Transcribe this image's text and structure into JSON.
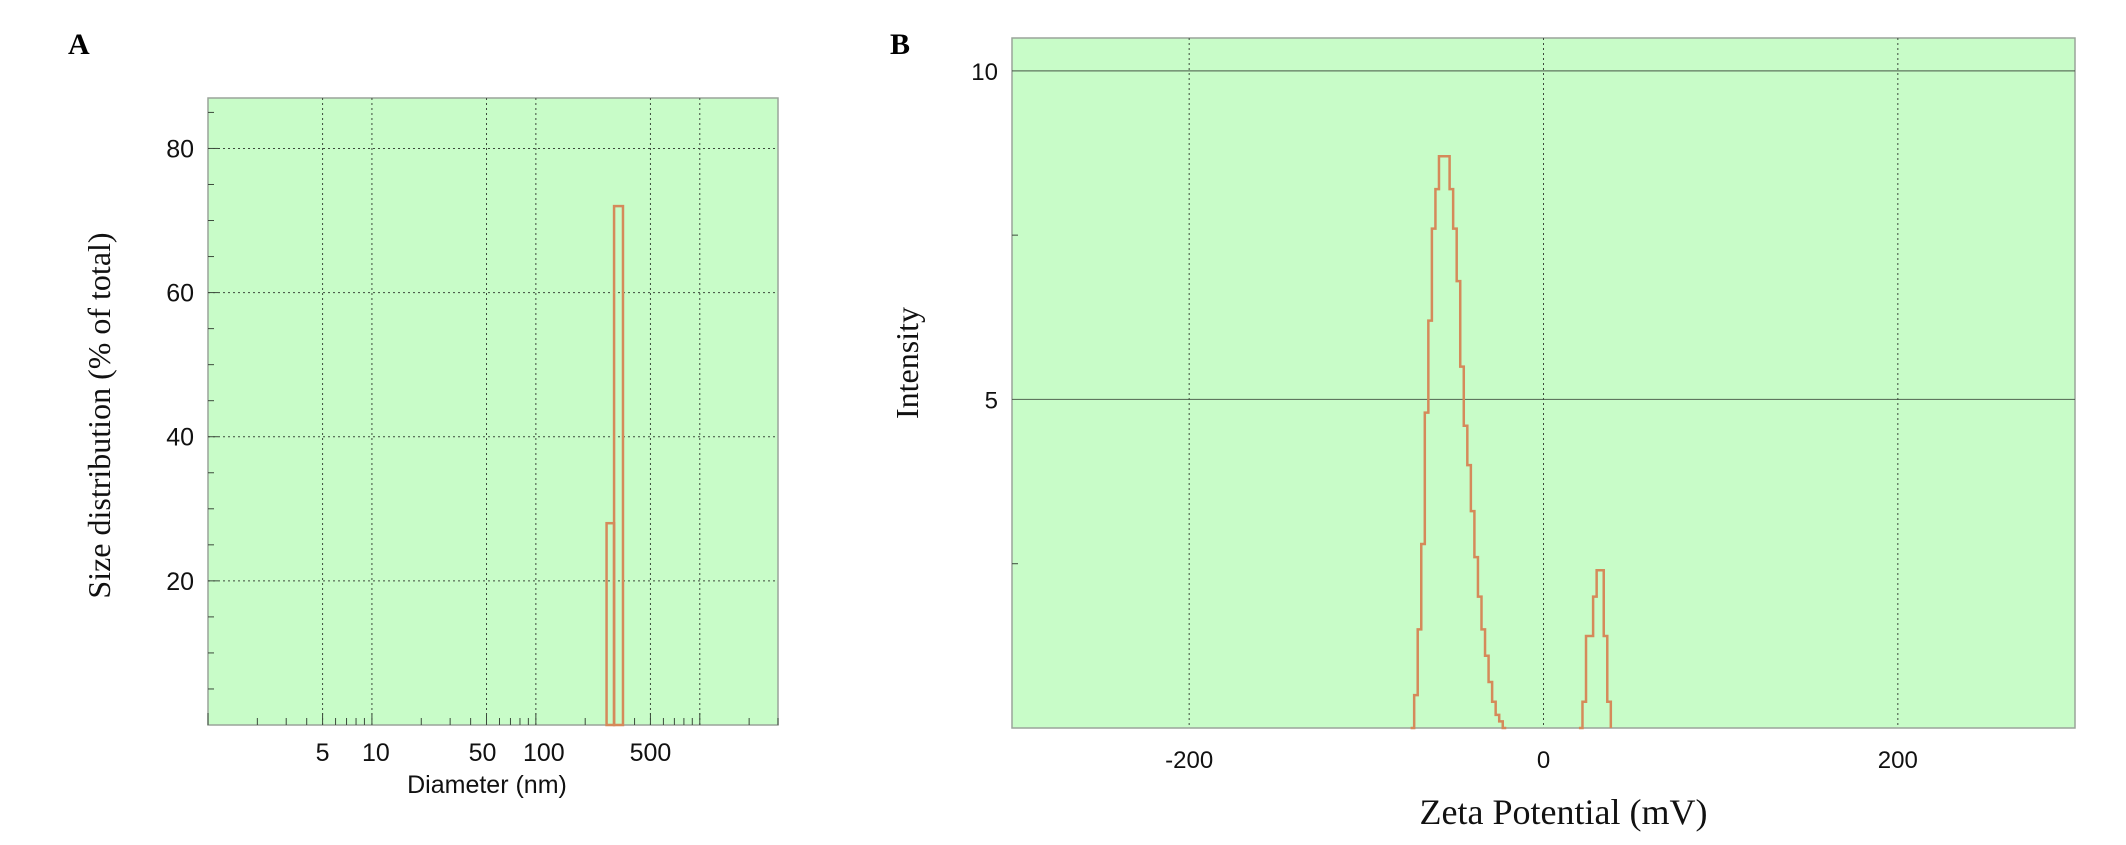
{
  "figure": {
    "panel_a_letter": "A",
    "panel_b_letter": "B"
  },
  "colors": {
    "plot_background": "#c8fcc8",
    "line": "#d58a5a",
    "grid": "#3c4a3c",
    "frame": "#9aa49a"
  },
  "chart_data": [
    {
      "type": "bar",
      "panel": "A",
      "title": "",
      "xlabel": "Diameter (nm)",
      "ylabel": "Size distribution (% of total)",
      "x_scale": "log",
      "xlim": [
        1,
        3000
      ],
      "ylim": [
        0,
        87
      ],
      "x_ticks": [
        5,
        10,
        50,
        100,
        500
      ],
      "x_tick_labels": [
        "5",
        "10",
        "50",
        "100",
        "500"
      ],
      "x_gridlines": [
        5,
        10,
        50,
        100,
        500,
        1000
      ],
      "y_ticks": [
        20,
        40,
        60,
        80
      ],
      "y_tick_labels": [
        "20",
        "40",
        "60",
        "80"
      ],
      "grid": true,
      "bars": [
        {
          "x_start": 270,
          "x_end": 300,
          "value": 28
        },
        {
          "x_start": 300,
          "x_end": 340,
          "value": 72
        }
      ]
    },
    {
      "type": "line",
      "panel": "B",
      "title": "",
      "xlabel": "Zeta Potential (mV)",
      "ylabel": "Intensity",
      "xlim": [
        -300,
        300
      ],
      "ylim": [
        0,
        10.5
      ],
      "x_ticks": [
        -200,
        0,
        200
      ],
      "x_tick_labels": [
        "-200",
        "0",
        "200"
      ],
      "y_ticks": [
        5,
        10
      ],
      "y_tick_labels": [
        "5",
        "10"
      ],
      "y_gridlines": [
        5,
        10
      ],
      "grid": true,
      "series": [
        {
          "x": [
            -75,
            -73,
            -71,
            -69,
            -67,
            -65,
            -63,
            -61,
            -59,
            -57,
            -55,
            -53,
            -51,
            -49,
            -47,
            -45,
            -43,
            -41,
            -39,
            -37,
            -35,
            -33,
            -31,
            -29,
            -27,
            -25,
            -23,
            -21,
            20,
            22,
            24,
            26,
            28,
            30,
            32,
            34,
            36,
            38
          ],
          "y": [
            0,
            0.5,
            1.5,
            2.8,
            4.8,
            6.2,
            7.6,
            8.2,
            8.7,
            8.7,
            8.7,
            8.2,
            7.6,
            6.8,
            5.5,
            4.6,
            4.0,
            3.3,
            2.6,
            2.0,
            1.5,
            1.1,
            0.7,
            0.4,
            0.2,
            0.1,
            0,
            0,
            0,
            0.4,
            1.4,
            1.4,
            2.0,
            2.4,
            2.4,
            1.4,
            0.4,
            0
          ]
        }
      ]
    }
  ]
}
